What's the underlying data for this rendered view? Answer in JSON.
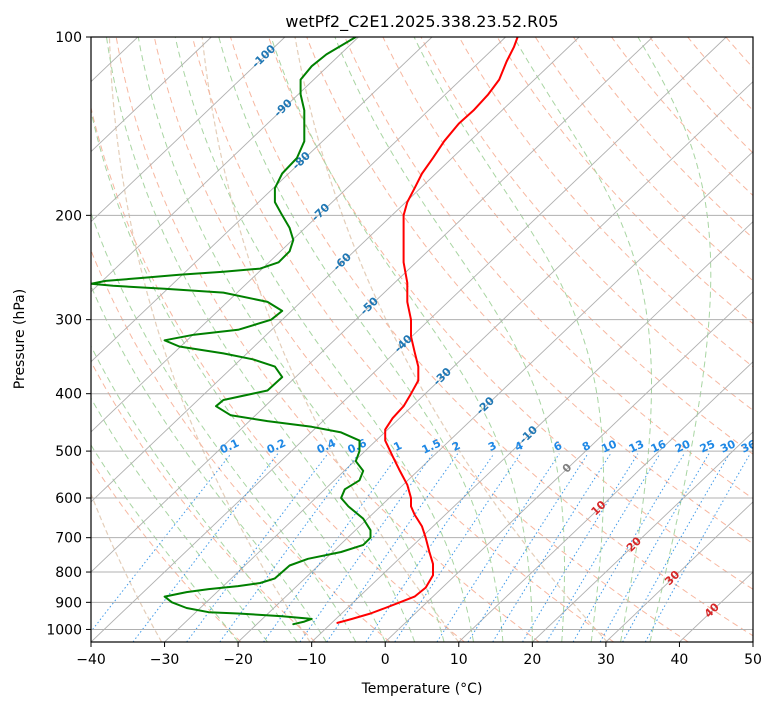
{
  "chart_data": {
    "type": "line",
    "title": "wetPf2_C2E1.2025.338.23.52.R05",
    "xlabel": "Temperature (°C)",
    "ylabel": "Pressure (hPa)",
    "xlim": [
      -40,
      50
    ],
    "ylim": [
      1050,
      100
    ],
    "y_scale": "log",
    "x_ticks": [
      "−40",
      "−30",
      "−20",
      "−10",
      "0",
      "10",
      "20",
      "30",
      "40",
      "50"
    ],
    "y_ticks": [
      {
        "p": 100,
        "label": "100"
      },
      {
        "p": 200,
        "label": "200"
      },
      {
        "p": 300,
        "label": "300"
      },
      {
        "p": 400,
        "label": "400"
      },
      {
        "p": 500,
        "label": "500"
      },
      {
        "p": 600,
        "label": "600"
      },
      {
        "p": 700,
        "label": "700"
      },
      {
        "p": 800,
        "label": "800"
      },
      {
        "p": 900,
        "label": "900"
      },
      {
        "p": 1000,
        "label": "1000"
      }
    ],
    "grid": true,
    "background_lines": {
      "isotherm_color": "#b0b0b0",
      "dry_adiabat_color": "#f7b7a0",
      "moist_adiabat_color": "#a8d5a2",
      "mixing_ratio_color": "#1e88e5",
      "theta_e_color": "#d9b99b"
    },
    "mixing_ratio_labels": [
      {
        "label": "0.1",
        "w": 0.1
      },
      {
        "label": "0.2",
        "w": 0.2
      },
      {
        "label": "0.4",
        "w": 0.4
      },
      {
        "label": "0.6",
        "w": 0.6
      },
      {
        "label": "1",
        "w": 1
      },
      {
        "label": "1.5",
        "w": 1.5
      },
      {
        "label": "2",
        "w": 2
      },
      {
        "label": "3",
        "w": 3
      },
      {
        "label": "4",
        "w": 4
      },
      {
        "label": "6",
        "w": 6
      },
      {
        "label": "8",
        "w": 8
      },
      {
        "label": "10",
        "w": 10
      },
      {
        "label": "13",
        "w": 13
      },
      {
        "label": "16",
        "w": 16
      },
      {
        "label": "20",
        "w": 20
      },
      {
        "label": "25",
        "w": 25
      },
      {
        "label": "30",
        "w": 30
      },
      {
        "label": "36",
        "w": 36
      }
    ],
    "isotherm_labels": [
      {
        "label": "-100",
        "t": -100,
        "p": 108,
        "color": "#1f77b4"
      },
      {
        "label": "-90",
        "t": -90,
        "p": 132,
        "color": "#1f77b4"
      },
      {
        "label": "-80",
        "t": -80,
        "p": 162,
        "color": "#1f77b4"
      },
      {
        "label": "-70",
        "t": -70,
        "p": 198,
        "color": "#1f77b4"
      },
      {
        "label": "-60",
        "t": -60,
        "p": 240,
        "color": "#1f77b4"
      },
      {
        "label": "-50",
        "t": -50,
        "p": 285,
        "color": "#1f77b4"
      },
      {
        "label": "-40",
        "t": -40,
        "p": 330,
        "color": "#1f77b4"
      },
      {
        "label": "-30",
        "t": -30,
        "p": 375,
        "color": "#1f77b4"
      },
      {
        "label": "-20",
        "t": -20,
        "p": 420,
        "color": "#1f77b4"
      },
      {
        "label": "-10",
        "t": -10,
        "p": 470,
        "color": "#1f77b4"
      },
      {
        "label": "0",
        "t": 0,
        "p": 535,
        "color": "#808080"
      },
      {
        "label": "10",
        "t": 10,
        "p": 625,
        "color": "#d62728"
      },
      {
        "label": "20",
        "t": 20,
        "p": 720,
        "color": "#d62728"
      },
      {
        "label": "30",
        "t": 30,
        "p": 820,
        "color": "#d62728"
      },
      {
        "label": "40",
        "t": 40,
        "p": 930,
        "color": "#d62728"
      }
    ],
    "series": [
      {
        "color": "#ff0000",
        "points": [
          [
            -6.5,
            975
          ],
          [
            -4.5,
            960
          ],
          [
            -2,
            940
          ],
          [
            0,
            920
          ],
          [
            2,
            900
          ],
          [
            4,
            880
          ],
          [
            5.5,
            850
          ],
          [
            6.5,
            810
          ],
          [
            6.5,
            775
          ],
          [
            6,
            740
          ],
          [
            5.5,
            700
          ],
          [
            5,
            670
          ],
          [
            4,
            640
          ],
          [
            3.5,
            620
          ],
          [
            3.5,
            600
          ],
          [
            3,
            570
          ],
          [
            2,
            540
          ],
          [
            1,
            510
          ],
          [
            0,
            480
          ],
          [
            0,
            460
          ],
          [
            1,
            440
          ],
          [
            2.5,
            420
          ],
          [
            3.5,
            400
          ],
          [
            4.5,
            380
          ],
          [
            4.5,
            360
          ],
          [
            4,
            340
          ],
          [
            3.5,
            320
          ],
          [
            3.5,
            300
          ],
          [
            3,
            280
          ],
          [
            3,
            260
          ],
          [
            2.5,
            240
          ],
          [
            2.5,
            220
          ],
          [
            2.5,
            200
          ],
          [
            3,
            190
          ],
          [
            4,
            180
          ],
          [
            5,
            170
          ],
          [
            6.5,
            160
          ],
          [
            8,
            150
          ],
          [
            10,
            140
          ],
          [
            12,
            133
          ],
          [
            14,
            125
          ],
          [
            15.5,
            118
          ],
          [
            16.5,
            110
          ],
          [
            17.5,
            104
          ],
          [
            18,
            100
          ]
        ]
      },
      {
        "color": "#008000",
        "points": [
          [
            -12.5,
            980
          ],
          [
            -11,
            970
          ],
          [
            -10,
            960
          ],
          [
            -14,
            950
          ],
          [
            -20,
            940
          ],
          [
            -24,
            935
          ],
          [
            -27,
            920
          ],
          [
            -29,
            900
          ],
          [
            -30,
            880
          ],
          [
            -27,
            865
          ],
          [
            -24,
            855
          ],
          [
            -20,
            845
          ],
          [
            -17,
            835
          ],
          [
            -15,
            820
          ],
          [
            -14,
            800
          ],
          [
            -13,
            780
          ],
          [
            -10.5,
            760
          ],
          [
            -6,
            740
          ],
          [
            -3,
            720
          ],
          [
            -2,
            700
          ],
          [
            -2,
            680
          ],
          [
            -3,
            650
          ],
          [
            -5,
            620
          ],
          [
            -6,
            600
          ],
          [
            -5.5,
            580
          ],
          [
            -3.5,
            560
          ],
          [
            -3,
            540
          ],
          [
            -4,
            520
          ],
          [
            -3.5,
            500
          ],
          [
            -3.5,
            480
          ],
          [
            -6,
            465
          ],
          [
            -10,
            455
          ],
          [
            -16,
            445
          ],
          [
            -21,
            435
          ],
          [
            -23,
            420
          ],
          [
            -22,
            410
          ],
          [
            -16,
            395
          ],
          [
            -14,
            375
          ],
          [
            -15,
            360
          ],
          [
            -18,
            350
          ],
          [
            -22,
            342
          ],
          [
            -28,
            333
          ],
          [
            -30,
            325
          ],
          [
            -26,
            318
          ],
          [
            -20,
            312
          ],
          [
            -15.5,
            300
          ],
          [
            -14,
            290
          ],
          [
            -16,
            280
          ],
          [
            -22,
            270
          ],
          [
            -30,
            266
          ],
          [
            -37,
            263
          ],
          [
            -40,
            261
          ],
          [
            -38,
            258
          ],
          [
            -33,
            255
          ],
          [
            -28,
            252
          ],
          [
            -22,
            249
          ],
          [
            -17,
            246
          ],
          [
            -14.5,
            240
          ],
          [
            -13,
            230
          ],
          [
            -12.5,
            220
          ],
          [
            -13,
            210
          ],
          [
            -14,
            200
          ],
          [
            -15,
            190
          ],
          [
            -15,
            180
          ],
          [
            -14,
            170
          ],
          [
            -12,
            160
          ],
          [
            -11,
            150
          ],
          [
            -11,
            140
          ],
          [
            -11,
            133
          ],
          [
            -11.5,
            125
          ],
          [
            -11.5,
            118
          ],
          [
            -10,
            112
          ],
          [
            -8,
            107
          ],
          [
            -4,
            100
          ]
        ]
      }
    ]
  }
}
